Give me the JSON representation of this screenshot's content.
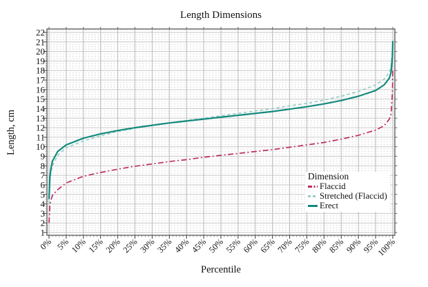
{
  "chart_data": {
    "type": "line",
    "title": "Length Dimensions",
    "xlabel": "Percentile",
    "ylabel": "Length, cm",
    "xlim": [
      0,
      100
    ],
    "ylim": [
      1,
      22
    ],
    "grid": "on",
    "x_tick_values": [
      0,
      5,
      10,
      15,
      20,
      25,
      30,
      35,
      40,
      45,
      50,
      55,
      60,
      65,
      70,
      75,
      80,
      85,
      90,
      95,
      100
    ],
    "x_tick_labels": [
      "0%",
      "5%",
      "10%",
      "15%",
      "20%",
      "25%",
      "30%",
      "35%",
      "40%",
      "45%",
      "50%",
      "55%",
      "60%",
      "65%",
      "70%",
      "75%",
      "80%",
      "85%",
      "90%",
      "95%",
      "100%"
    ],
    "y_tick_values": [
      1,
      2,
      3,
      4,
      5,
      6,
      7,
      8,
      9,
      10,
      11,
      12,
      13,
      14,
      15,
      16,
      17,
      18,
      19,
      20,
      21,
      22
    ],
    "legend": {
      "title": "Dimension",
      "position": "inside-right"
    },
    "x": [
      0,
      0.25,
      0.5,
      1,
      2.5,
      5,
      10,
      15,
      20,
      25,
      30,
      35,
      40,
      45,
      50,
      55,
      60,
      65,
      70,
      75,
      80,
      85,
      90,
      95,
      97.5,
      99,
      99.5,
      99.9,
      100
    ],
    "series": [
      {
        "id": "flaccid",
        "name": "Flaccid",
        "color": "#BE2A63",
        "dash": "dash-dot",
        "values": [
          2.0,
          3.8,
          4.3,
          4.9,
          5.5,
          6.2,
          6.9,
          7.3,
          7.65,
          7.95,
          8.2,
          8.45,
          8.65,
          8.9,
          9.1,
          9.3,
          9.5,
          9.7,
          9.95,
          10.2,
          10.45,
          10.8,
          11.2,
          11.75,
          12.2,
          12.9,
          13.4,
          15.8,
          18.0
        ]
      },
      {
        "id": "stretched-flaccid",
        "name": "Stretched (Flaccid)",
        "color": "#96CDC6",
        "dash": "dashed",
        "values": [
          4.0,
          6.3,
          7.1,
          8.0,
          9.1,
          9.9,
          10.6,
          11.15,
          11.6,
          11.95,
          12.25,
          12.5,
          12.75,
          13.0,
          13.25,
          13.5,
          13.75,
          14.0,
          14.3,
          14.55,
          14.9,
          15.3,
          15.8,
          16.5,
          17.1,
          17.8,
          18.4,
          20.3,
          21.2
        ]
      },
      {
        "id": "erect",
        "name": "Erect",
        "color": "#12897C",
        "dash": "solid",
        "values": [
          4.5,
          6.8,
          7.6,
          8.5,
          9.5,
          10.2,
          10.9,
          11.35,
          11.7,
          12.0,
          12.25,
          12.5,
          12.7,
          12.9,
          13.1,
          13.3,
          13.5,
          13.7,
          13.95,
          14.2,
          14.5,
          14.85,
          15.3,
          15.9,
          16.5,
          17.2,
          17.8,
          19.5,
          21.1
        ]
      }
    ],
    "style": {
      "text_color": "#111111",
      "border_color": "#4a4a4a",
      "major_grid_color": "#c6c6c6",
      "minor_grid_color": "#d9d9d9",
      "vertical_grid_color": "#b9b9b9",
      "tick_color": "#333333",
      "background": "#ffffff"
    }
  }
}
